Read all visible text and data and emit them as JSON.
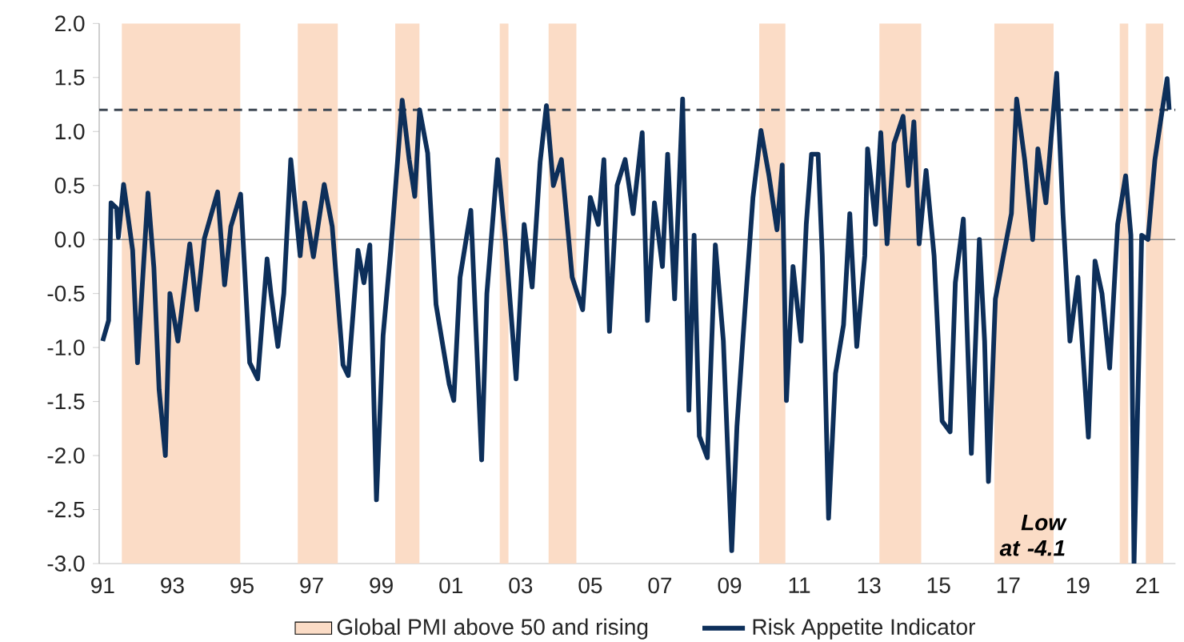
{
  "chart_data": {
    "type": "line",
    "annotations": [
      "Low at -4.1"
    ],
    "x": [
      1991.0,
      1991.17,
      1991.24,
      1991.4,
      1991.45,
      1991.6,
      1991.86,
      1992.0,
      1992.3,
      1992.47,
      1992.62,
      1992.8,
      1992.93,
      1993.16,
      1993.5,
      1993.7,
      1993.92,
      1994.3,
      1994.5,
      1994.68,
      1994.96,
      1995.22,
      1995.45,
      1995.72,
      1995.83,
      1996.03,
      1996.2,
      1996.4,
      1996.67,
      1996.8,
      1997.05,
      1997.36,
      1997.59,
      1997.9,
      1998.05,
      1998.33,
      1998.5,
      1998.67,
      1998.86,
      1999.05,
      1999.27,
      1999.6,
      1999.8,
      1999.96,
      2000.1,
      2000.33,
      2000.57,
      2000.95,
      2001.08,
      2001.26,
      2001.57,
      2001.88,
      2002.03,
      2002.34,
      2002.56,
      2002.87,
      2003.1,
      2003.33,
      2003.56,
      2003.74,
      2003.94,
      2004.17,
      2004.48,
      2004.78,
      2005.0,
      2005.23,
      2005.39,
      2005.55,
      2005.77,
      2006.0,
      2006.23,
      2006.49,
      2006.64,
      2006.84,
      2007.07,
      2007.22,
      2007.42,
      2007.65,
      2007.83,
      2007.98,
      2008.13,
      2008.36,
      2008.59,
      2008.82,
      2009.06,
      2009.21,
      2009.44,
      2009.67,
      2009.9,
      2010.13,
      2010.36,
      2010.51,
      2010.63,
      2010.82,
      2011.05,
      2011.2,
      2011.35,
      2011.54,
      2011.66,
      2011.84,
      2012.04,
      2012.27,
      2012.45,
      2012.65,
      2012.88,
      2012.96,
      2013.19,
      2013.34,
      2013.52,
      2013.72,
      2013.98,
      2014.13,
      2014.29,
      2014.44,
      2014.64,
      2014.87,
      2015.1,
      2015.33,
      2015.48,
      2015.71,
      2015.94,
      2016.17,
      2016.32,
      2016.43,
      2016.63,
      2016.86,
      2017.09,
      2017.24,
      2017.47,
      2017.7,
      2017.85,
      2018.08,
      2018.23,
      2018.39,
      2018.57,
      2018.77,
      2019.0,
      2019.3,
      2019.49,
      2019.69,
      2019.91,
      2020.14,
      2020.37,
      2020.52,
      2020.61,
      2020.83,
      2021.01,
      2021.21,
      2021.44,
      2021.56,
      2021.62
    ],
    "series": [
      {
        "name": "Risk Appetite Indicator",
        "color": "#0d2f5a",
        "values": [
          -0.94,
          -0.75,
          0.34,
          0.29,
          0.02,
          0.51,
          -0.1,
          -1.14,
          0.43,
          -0.26,
          -1.39,
          -2.0,
          -0.5,
          -0.94,
          -0.04,
          -0.65,
          0.01,
          0.44,
          -0.42,
          0.12,
          0.42,
          -1.14,
          -1.29,
          -0.18,
          -0.5,
          -0.99,
          -0.5,
          0.74,
          -0.15,
          0.34,
          -0.16,
          0.51,
          0.12,
          -1.16,
          -1.26,
          -0.1,
          -0.4,
          -0.05,
          -2.41,
          -0.89,
          -0.1,
          1.29,
          0.74,
          0.4,
          1.2,
          0.8,
          -0.6,
          -1.34,
          -1.49,
          -0.35,
          0.27,
          -2.04,
          -0.5,
          0.74,
          0.0,
          -1.29,
          0.14,
          -0.44,
          0.72,
          1.24,
          0.5,
          0.74,
          -0.35,
          -0.65,
          0.39,
          0.14,
          0.74,
          -0.85,
          0.5,
          0.74,
          0.24,
          0.99,
          -0.75,
          0.34,
          -0.25,
          0.79,
          -0.55,
          1.3,
          -1.58,
          0.04,
          -1.82,
          -2.02,
          -0.05,
          -0.94,
          -2.88,
          -1.73,
          -0.65,
          0.39,
          1.01,
          0.59,
          0.09,
          0.69,
          -1.49,
          -0.25,
          -0.94,
          0.14,
          0.79,
          0.79,
          -0.15,
          -2.58,
          -1.24,
          -0.79,
          0.24,
          -0.99,
          -0.15,
          0.84,
          0.14,
          0.99,
          -0.04,
          0.89,
          1.14,
          0.5,
          1.09,
          -0.04,
          0.64,
          -0.15,
          -1.68,
          -1.78,
          -0.4,
          0.19,
          -1.98,
          0.0,
          -0.94,
          -2.24,
          -0.55,
          -0.15,
          0.24,
          1.3,
          0.74,
          0.0,
          0.84,
          0.34,
          0.94,
          1.54,
          0.24,
          -0.94,
          -0.35,
          -1.83,
          -0.2,
          -0.5,
          -1.19,
          0.14,
          0.59,
          0.04,
          -3.0,
          0.04,
          0.0,
          0.74,
          1.24,
          1.49,
          1.2
        ]
      }
    ],
    "xlim": [
      1990.9,
      2021.8
    ],
    "xticks": [
      {
        "value": 1991,
        "label": "91"
      },
      {
        "value": 1993,
        "label": "93"
      },
      {
        "value": 1995,
        "label": "95"
      },
      {
        "value": 1997,
        "label": "97"
      },
      {
        "value": 1999,
        "label": "99"
      },
      {
        "value": 2001,
        "label": "01"
      },
      {
        "value": 2003,
        "label": "03"
      },
      {
        "value": 2005,
        "label": "05"
      },
      {
        "value": 2007,
        "label": "07"
      },
      {
        "value": 2009,
        "label": "09"
      },
      {
        "value": 2011,
        "label": "11"
      },
      {
        "value": 2013,
        "label": "13"
      },
      {
        "value": 2015,
        "label": "15"
      },
      {
        "value": 2017,
        "label": "17"
      },
      {
        "value": 2019,
        "label": "19"
      },
      {
        "value": 2021,
        "label": "21"
      }
    ],
    "ylim": [
      -3.0,
      2.0
    ],
    "yticks": [
      {
        "value": -3.0,
        "label": "-3.0"
      },
      {
        "value": -2.5,
        "label": "-2.5"
      },
      {
        "value": -2.0,
        "label": "-2.0"
      },
      {
        "value": -1.5,
        "label": "-1.5"
      },
      {
        "value": -1.0,
        "label": "-1.0"
      },
      {
        "value": -0.5,
        "label": "-0.5"
      },
      {
        "value": 0.0,
        "label": "0.0"
      },
      {
        "value": 0.5,
        "label": "0.5"
      },
      {
        "value": 1.0,
        "label": "1.0"
      },
      {
        "value": 1.5,
        "label": "1.5"
      },
      {
        "value": 2.0,
        "label": "2.0"
      }
    ],
    "bands": [
      {
        "axis": "x",
        "from": 1991.55,
        "to": 1994.95,
        "label": "Global PMI above 50 and rising",
        "color": "#fbdcc6"
      },
      {
        "axis": "x",
        "from": 1996.6,
        "to": 1997.75,
        "color": "#fbdcc6"
      },
      {
        "axis": "x",
        "from": 1999.4,
        "to": 2000.1,
        "color": "#fbdcc6"
      },
      {
        "axis": "x",
        "from": 2002.4,
        "to": 2002.65,
        "color": "#fbdcc6"
      },
      {
        "axis": "x",
        "from": 2003.8,
        "to": 2004.6,
        "color": "#fbdcc6"
      },
      {
        "axis": "x",
        "from": 2009.85,
        "to": 2010.6,
        "color": "#fbdcc6"
      },
      {
        "axis": "x",
        "from": 2013.3,
        "to": 2014.5,
        "color": "#fbdcc6"
      },
      {
        "axis": "x",
        "from": 2016.6,
        "to": 2018.3,
        "color": "#fbdcc6"
      },
      {
        "axis": "x",
        "from": 2020.2,
        "to": 2020.45,
        "color": "#fbdcc6"
      },
      {
        "axis": "x",
        "from": 2020.95,
        "to": 2021.45,
        "color": "#fbdcc6"
      }
    ],
    "ref_lines": [
      {
        "axis": "y",
        "value": 1.2,
        "color": "#404a55",
        "line_style": "dashed"
      },
      {
        "axis": "y",
        "value": 0.0,
        "color": "#8a8a8a",
        "line_style": "solid"
      }
    ],
    "grid": false,
    "legend": "bottom",
    "marker": "none",
    "line_style": "solid"
  }
}
